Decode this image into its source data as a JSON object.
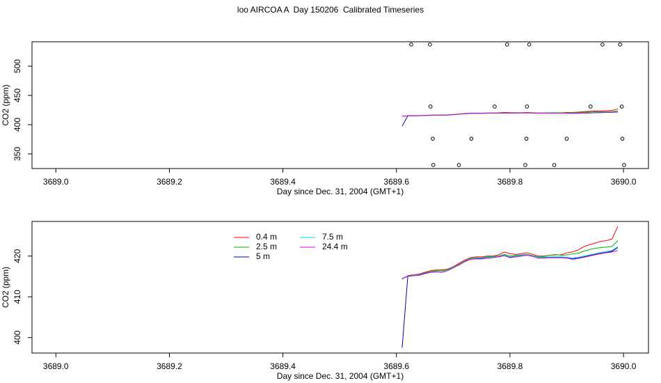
{
  "chart_data": [
    {
      "type": "line",
      "title": "loo AIRCOA A  Day 150206  Calibrated Timeseries",
      "y_label": "CO2 (ppm)",
      "x_label": "Day since Dec. 31, 2004 (GMT+1)",
      "xlim": [
        3688.958,
        3690.044
      ],
      "ylim": [
        325,
        541.7
      ],
      "xticks": [
        {
          "value": 3689,
          "label": "3689.0"
        },
        3689.2,
        3689.4,
        3689.6,
        3689.8,
        {
          "value": 3690,
          "label": "3690.0"
        }
      ],
      "yticks": [
        350,
        400,
        450,
        500
      ],
      "x": [
        3689.61,
        3689.62,
        3689.63,
        3689.64,
        3689.65,
        3689.66,
        3689.67,
        3689.68,
        3689.69,
        3689.7,
        3689.71,
        3689.72,
        3689.73,
        3689.74,
        3689.75,
        3689.76,
        3689.77,
        3689.78,
        3689.79,
        3689.8,
        3689.81,
        3689.82,
        3689.83,
        3689.84,
        3689.85,
        3689.86,
        3689.87,
        3689.88,
        3689.89,
        3689.9,
        3689.91,
        3689.92,
        3689.93,
        3689.94,
        3689.95,
        3689.96,
        3689.97,
        3689.98,
        3689.99
      ],
      "series": [
        {
          "color": "#ff0000",
          "values": [
            414.3,
            415.2,
            415.4,
            415.6,
            416.0,
            416.4,
            416.6,
            416.6,
            416.8,
            417.4,
            418.2,
            419.0,
            419.6,
            419.8,
            419.8,
            420.0,
            420.0,
            420.3,
            421.0,
            420.6,
            420.4,
            420.6,
            420.8,
            420.4,
            420.0,
            420.0,
            420.2,
            420.3,
            420.3,
            420.8,
            421.0,
            421.5,
            422.3,
            422.8,
            423.2,
            423.6,
            423.8,
            424.2,
            427.3
          ]
        },
        {
          "color": "#00b000",
          "values": [
            414.4,
            415.1,
            415.3,
            415.5,
            415.9,
            416.2,
            416.4,
            416.4,
            416.7,
            417.3,
            418.0,
            418.8,
            419.4,
            419.6,
            419.6,
            419.8,
            419.9,
            420.0,
            420.4,
            420.0,
            420.2,
            420.3,
            420.4,
            420.1,
            419.8,
            419.9,
            420.2,
            420.4,
            420.2,
            420.3,
            420.5,
            420.7,
            421.2,
            421.6,
            421.9,
            422.1,
            422.2,
            422.4,
            423.8
          ]
        },
        {
          "color": "#0000a0",
          "values": [
            397.5,
            415.0,
            415.2,
            415.3,
            415.7,
            416.0,
            416.1,
            416.1,
            416.5,
            417.1,
            417.8,
            418.6,
            419.2,
            419.4,
            419.4,
            419.6,
            419.7,
            419.8,
            420.1,
            419.7,
            419.9,
            420.1,
            420.3,
            420.0,
            419.6,
            419.6,
            419.7,
            419.7,
            419.7,
            419.6,
            419.4,
            419.5,
            419.8,
            420.1,
            420.4,
            420.7,
            420.9,
            421.2,
            422.1
          ]
        },
        {
          "color": "#00d8d8",
          "values": [
            414.4,
            415.0,
            415.3,
            415.4,
            415.8,
            416.1,
            416.2,
            416.1,
            416.5,
            417.2,
            417.9,
            418.7,
            419.3,
            419.5,
            419.5,
            419.7,
            419.7,
            419.9,
            420.2,
            419.8,
            420.0,
            420.2,
            420.3,
            420.0,
            419.7,
            419.7,
            419.8,
            419.8,
            419.8,
            419.7,
            419.5,
            419.7,
            420.0,
            420.3,
            420.6,
            420.9,
            421.1,
            421.4,
            422.3
          ]
        },
        {
          "color": "#e000e0",
          "values": [
            414.5,
            415.1,
            415.2,
            415.3,
            415.8,
            416.0,
            416.1,
            416.0,
            416.4,
            417.1,
            417.8,
            418.6,
            419.2,
            419.3,
            419.3,
            419.5,
            419.6,
            419.8,
            420.1,
            419.6,
            419.8,
            420.0,
            420.2,
            419.9,
            419.5,
            419.5,
            419.6,
            419.6,
            419.6,
            419.5,
            419.2,
            419.4,
            419.7,
            420.0,
            420.3,
            420.6,
            420.8,
            421.0,
            421.4
          ]
        }
      ],
      "points": {
        "color": "#000000",
        "x": [
          3689.626,
          3689.659,
          3689.795,
          3689.834,
          3689.963,
          3689.994,
          3689.66,
          3689.773,
          3689.83,
          3689.942,
          3689.997,
          3689.664,
          3689.732,
          3689.829,
          3689.9,
          3689.998,
          3689.665,
          3689.71,
          3689.827,
          3689.878,
          3690.001
        ],
        "y": [
          537,
          537,
          537,
          537,
          537,
          537,
          431,
          431,
          431,
          431,
          431,
          376,
          376,
          376,
          376,
          376,
          331,
          331,
          331,
          331,
          331
        ]
      }
    },
    {
      "type": "line",
      "y_label": "CO2 (ppm)",
      "x_label": "Day since Dec. 31, 2004 (GMT+1)",
      "xlim": [
        3688.958,
        3690.044
      ],
      "ylim": [
        396.2,
        428.5
      ],
      "xticks": [
        {
          "value": 3689,
          "label": "3689.0"
        },
        3689.2,
        3689.4,
        3689.6,
        3689.8,
        {
          "value": 3690,
          "label": "3690.0"
        }
      ],
      "yticks": [
        400,
        410,
        420
      ],
      "x": [
        3689.61,
        3689.62,
        3689.63,
        3689.64,
        3689.65,
        3689.66,
        3689.67,
        3689.68,
        3689.69,
        3689.7,
        3689.71,
        3689.72,
        3689.73,
        3689.74,
        3689.75,
        3689.76,
        3689.77,
        3689.78,
        3689.79,
        3689.8,
        3689.81,
        3689.82,
        3689.83,
        3689.84,
        3689.85,
        3689.86,
        3689.87,
        3689.88,
        3689.89,
        3689.9,
        3689.91,
        3689.92,
        3689.93,
        3689.94,
        3689.95,
        3689.96,
        3689.97,
        3689.98,
        3689.99
      ],
      "legend": "top-left",
      "series": [
        {
          "name": "0.4 m",
          "color": "#ff0000",
          "values": [
            414.3,
            415.2,
            415.4,
            415.6,
            416.0,
            416.4,
            416.6,
            416.6,
            416.8,
            417.4,
            418.2,
            419.0,
            419.6,
            419.8,
            419.8,
            420.0,
            420.0,
            420.3,
            421.0,
            420.6,
            420.4,
            420.6,
            420.8,
            420.4,
            420.0,
            420.0,
            420.2,
            420.3,
            420.3,
            420.8,
            421.0,
            421.5,
            422.3,
            422.8,
            423.2,
            423.6,
            423.8,
            424.2,
            427.3
          ]
        },
        {
          "name": "2.5 m",
          "color": "#00b000",
          "values": [
            414.4,
            415.1,
            415.3,
            415.5,
            415.9,
            416.2,
            416.4,
            416.4,
            416.7,
            417.3,
            418.0,
            418.8,
            419.4,
            419.6,
            419.6,
            419.8,
            419.9,
            420.0,
            420.4,
            420.0,
            420.2,
            420.3,
            420.4,
            420.1,
            419.8,
            419.9,
            420.2,
            420.4,
            420.2,
            420.3,
            420.5,
            420.7,
            421.2,
            421.6,
            421.9,
            422.1,
            422.2,
            422.4,
            423.8
          ]
        },
        {
          "name": "5 m",
          "color": "#0000a0",
          "values": [
            397.5,
            415.0,
            415.2,
            415.3,
            415.7,
            416.0,
            416.1,
            416.1,
            416.5,
            417.1,
            417.8,
            418.6,
            419.2,
            419.4,
            419.4,
            419.6,
            419.7,
            419.8,
            420.1,
            419.7,
            419.9,
            420.1,
            420.3,
            420.0,
            419.6,
            419.6,
            419.7,
            419.7,
            419.7,
            419.6,
            419.4,
            419.5,
            419.8,
            420.1,
            420.4,
            420.7,
            420.9,
            421.2,
            422.1
          ]
        },
        {
          "name": "7.5 m",
          "color": "#00d8d8",
          "values": [
            414.4,
            415.0,
            415.3,
            415.4,
            415.8,
            416.1,
            416.2,
            416.1,
            416.5,
            417.2,
            417.9,
            418.7,
            419.3,
            419.5,
            419.5,
            419.7,
            419.7,
            419.9,
            420.2,
            419.8,
            420.0,
            420.2,
            420.3,
            420.0,
            419.7,
            419.7,
            419.8,
            419.8,
            419.8,
            419.7,
            419.5,
            419.7,
            420.0,
            420.3,
            420.6,
            420.9,
            421.1,
            421.4,
            422.3
          ]
        },
        {
          "name": "24.4 m",
          "color": "#e000e0",
          "values": [
            414.5,
            415.1,
            415.2,
            415.3,
            415.8,
            416.0,
            416.1,
            416.0,
            416.4,
            417.1,
            417.8,
            418.6,
            419.2,
            419.3,
            419.3,
            419.5,
            419.6,
            419.8,
            420.1,
            419.6,
            419.8,
            420.0,
            420.2,
            419.9,
            419.5,
            419.5,
            419.6,
            419.6,
            419.6,
            419.5,
            419.2,
            419.4,
            419.7,
            420.0,
            420.3,
            420.6,
            420.8,
            421.0,
            421.4
          ]
        }
      ]
    }
  ]
}
